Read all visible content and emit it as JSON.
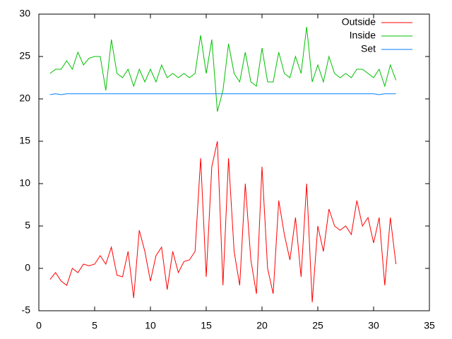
{
  "chart_data": {
    "type": "line",
    "x": [
      1,
      1.5,
      2,
      2.5,
      3,
      3.5,
      4,
      4.5,
      5,
      5.5,
      6,
      6.5,
      7,
      7.5,
      8,
      8.5,
      9,
      9.5,
      10,
      10.5,
      11,
      11.5,
      12,
      12.5,
      13,
      13.5,
      14,
      14.5,
      15,
      15.5,
      16,
      16.5,
      17,
      17.5,
      18,
      18.5,
      19,
      19.5,
      20,
      20.5,
      21,
      21.5,
      22,
      22.5,
      23,
      23.5,
      24,
      24.5,
      25,
      25.5,
      26,
      26.5,
      27,
      27.5,
      28,
      28.5,
      29,
      29.5,
      30,
      30.5,
      31,
      31.5,
      32
    ],
    "series": [
      {
        "name": "Outside",
        "color": "#ff0000",
        "values": [
          -1.3,
          -0.5,
          -1.5,
          -2,
          0,
          -0.5,
          0.5,
          0.3,
          0.5,
          1.5,
          0.5,
          2.5,
          -0.8,
          -1,
          2,
          -3.5,
          4.5,
          2,
          -1.5,
          1.5,
          2.5,
          -2.5,
          2,
          -0.5,
          0.8,
          1,
          2,
          13,
          -1,
          12,
          15,
          -2,
          13,
          2,
          -2,
          10,
          1,
          -3,
          12,
          0,
          -3,
          8,
          4,
          1,
          6,
          -1,
          10,
          -4,
          5,
          2,
          7,
          5,
          4.5,
          5,
          4,
          8,
          5,
          6,
          3,
          6,
          -2,
          6,
          0.5
        ]
      },
      {
        "name": "Inside",
        "color": "#00c000",
        "values": [
          23,
          23.5,
          23.5,
          24.5,
          23.5,
          25.5,
          24,
          24.8,
          25,
          25,
          21,
          27,
          23,
          22.5,
          23.5,
          21.5,
          23.5,
          22,
          23.5,
          22,
          24,
          22.5,
          23,
          22.5,
          23,
          22.5,
          23,
          27.5,
          23,
          27,
          18.5,
          21,
          26.5,
          23,
          22,
          25.5,
          22,
          21.5,
          26,
          22,
          22,
          25.5,
          23,
          22.5,
          25,
          23,
          28.5,
          22,
          24,
          22,
          25,
          23,
          22.5,
          23,
          22.5,
          23.5,
          23.5,
          23,
          22.5,
          23.5,
          21.5,
          24,
          22.2
        ]
      },
      {
        "name": "Set",
        "color": "#0080ff",
        "values": [
          20.5,
          20.6,
          20.5,
          20.6,
          20.6,
          20.6,
          20.6,
          20.6,
          20.6,
          20.6,
          20.6,
          20.6,
          20.6,
          20.6,
          20.6,
          20.6,
          20.6,
          20.6,
          20.6,
          20.6,
          20.6,
          20.6,
          20.6,
          20.6,
          20.6,
          20.6,
          20.6,
          20.6,
          20.6,
          20.6,
          20.6,
          20.6,
          20.6,
          20.6,
          20.6,
          20.6,
          20.6,
          20.6,
          20.6,
          20.6,
          20.6,
          20.6,
          20.6,
          20.6,
          20.6,
          20.6,
          20.6,
          20.6,
          20.6,
          20.6,
          20.6,
          20.6,
          20.6,
          20.6,
          20.6,
          20.6,
          20.6,
          20.6,
          20.6,
          20.5,
          20.6,
          20.6,
          20.6
        ]
      }
    ],
    "xlim": [
      0,
      35
    ],
    "xticks": [
      0,
      5,
      10,
      15,
      20,
      25,
      30,
      35
    ],
    "ylim": [
      -5,
      30
    ],
    "yticks": [
      -5,
      0,
      5,
      10,
      15,
      20,
      25,
      30
    ],
    "legend": "top-right"
  }
}
